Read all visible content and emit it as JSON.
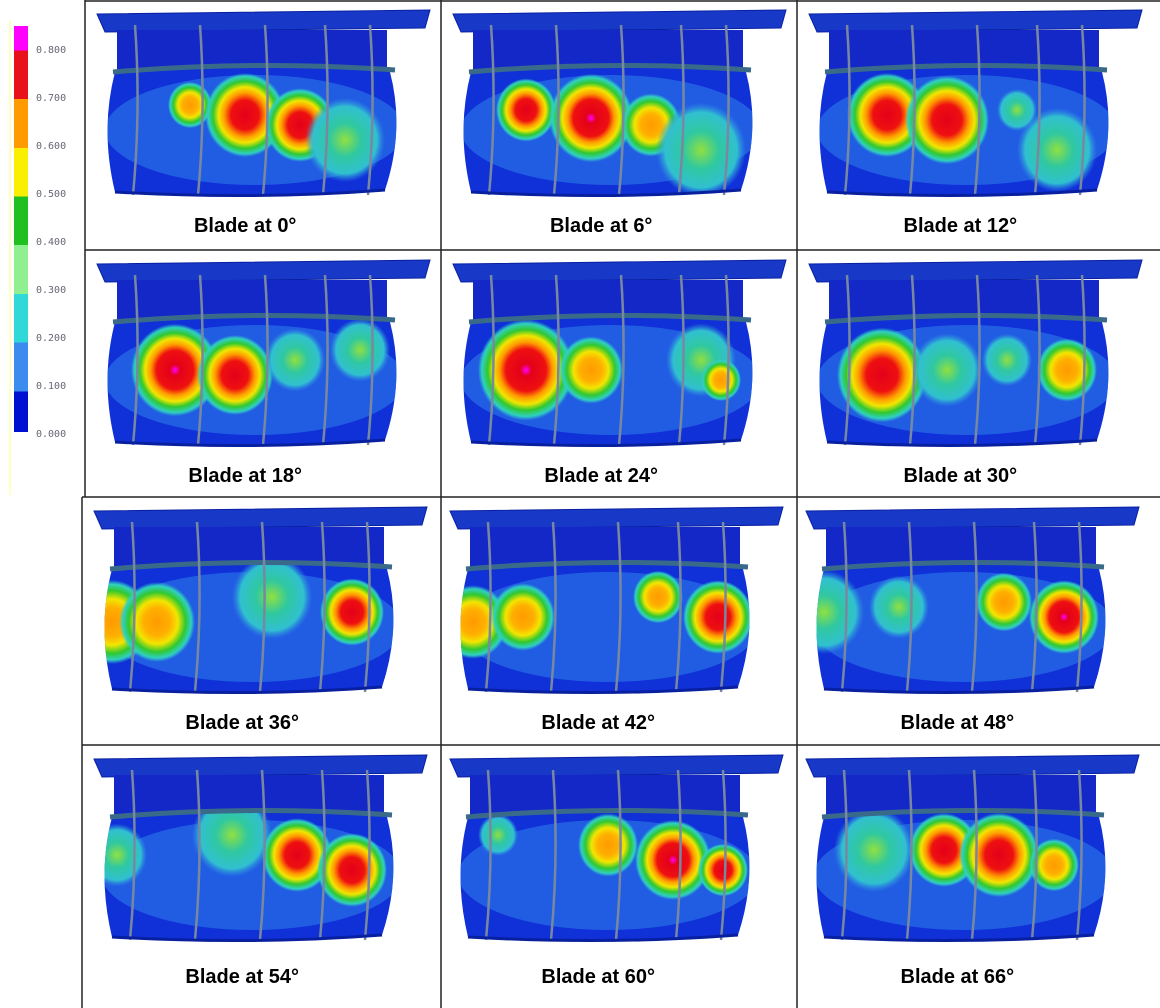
{
  "legend": {
    "labels": [
      "0.800",
      "0.700",
      "0.600",
      "0.500",
      "0.400",
      "0.300",
      "0.200",
      "0.100",
      "0.000"
    ]
  },
  "panels": [
    {
      "caption": "Blade at 0°"
    },
    {
      "caption": "Blade at 6°"
    },
    {
      "caption": "Blade at 12°"
    },
    {
      "caption": "Blade at 18°"
    },
    {
      "caption": "Blade at 24°"
    },
    {
      "caption": "Blade at 30°"
    },
    {
      "caption": "Blade at 36°"
    },
    {
      "caption": "Blade at 42°"
    },
    {
      "caption": "Blade at 48°"
    },
    {
      "caption": "Blade at 54°"
    },
    {
      "caption": "Blade at 60°"
    },
    {
      "caption": "Blade at 66°"
    }
  ]
}
